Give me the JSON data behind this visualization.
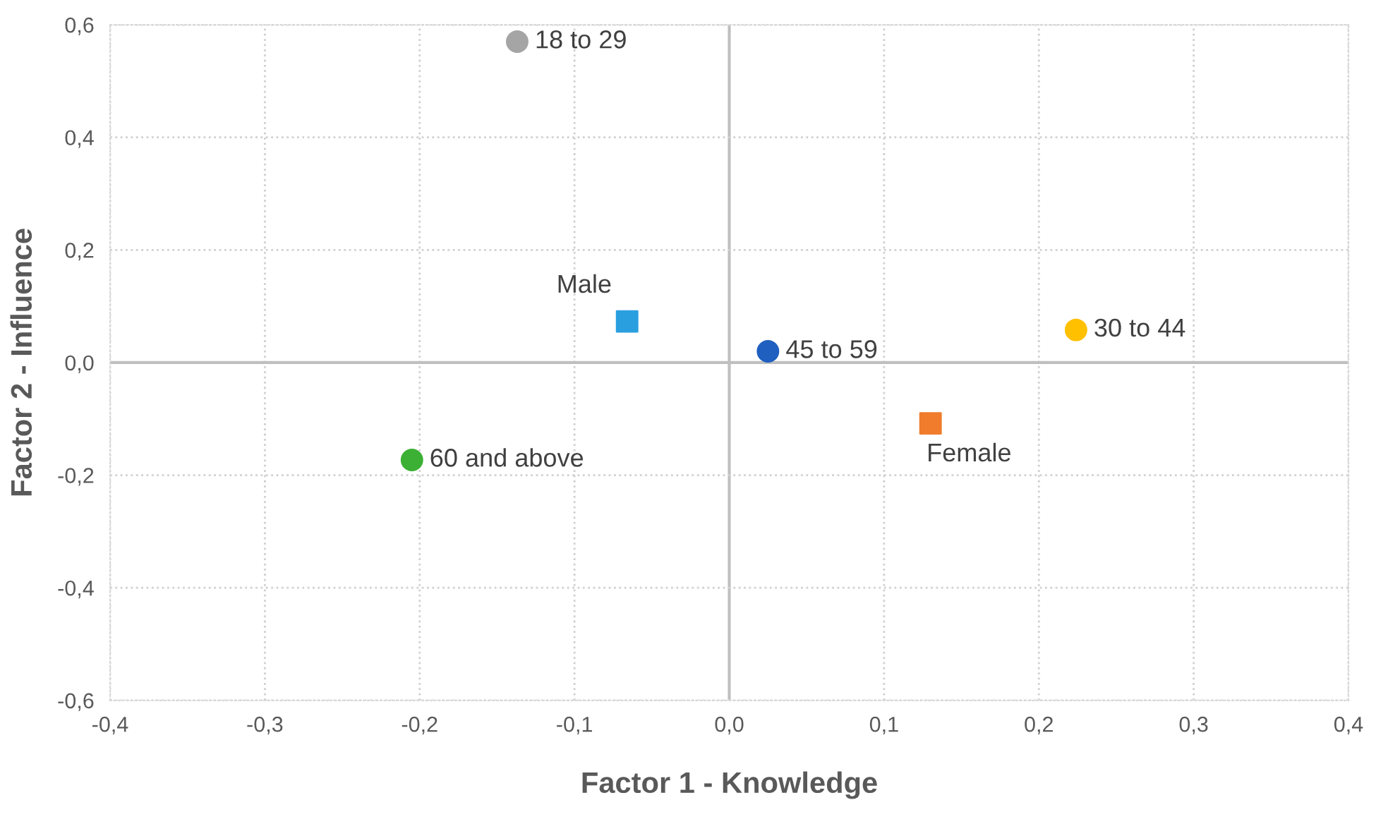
{
  "chart_data": {
    "type": "scatter",
    "xlabel": "Factor 1 - Knowledge",
    "ylabel": "Factor 2 - Influence",
    "series": [
      {
        "name": "18 to 29",
        "color": "#a5a5a5",
        "marker": "circle",
        "x": [
          -0.137
        ],
        "values": [
          0.57
        ]
      },
      {
        "name": "Male",
        "color": "#2a9fe0",
        "marker": "square",
        "x": [
          -0.066
        ],
        "values": [
          0.073
        ]
      },
      {
        "name": "45 to 59",
        "color": "#1f5fc0",
        "marker": "circle",
        "x": [
          0.025
        ],
        "values": [
          0.02
        ]
      },
      {
        "name": "30 to 44",
        "color": "#ffc000",
        "marker": "circle",
        "x": [
          0.224
        ],
        "values": [
          0.058
        ]
      },
      {
        "name": "Female",
        "color": "#f07c2c",
        "marker": "square",
        "x": [
          0.13
        ],
        "values": [
          -0.108
        ]
      },
      {
        "name": "60 and above",
        "color": "#3cb034",
        "marker": "circle",
        "x": [
          -0.205
        ],
        "values": [
          -0.173
        ]
      }
    ],
    "xlim": [
      -0.4,
      0.4
    ],
    "ylim": [
      -0.6,
      0.6
    ],
    "xticks": [
      {
        "value": -0.4,
        "label": "-0,4"
      },
      {
        "value": -0.3,
        "label": "-0,3"
      },
      {
        "value": -0.2,
        "label": "-0,2"
      },
      {
        "value": -0.1,
        "label": "-0,1"
      },
      {
        "value": 0,
        "label": "0,0"
      },
      {
        "value": 0.1,
        "label": "0,1"
      },
      {
        "value": 0.2,
        "label": "0,2"
      },
      {
        "value": 0.3,
        "label": "0,3"
      },
      {
        "value": 0.4,
        "label": "0,4"
      }
    ],
    "yticks": [
      {
        "value": -0.6,
        "label": "-0,6"
      },
      {
        "value": -0.4,
        "label": "-0,4"
      },
      {
        "value": -0.2,
        "label": "-0,2"
      },
      {
        "value": 0,
        "label": "0,0"
      },
      {
        "value": 0.2,
        "label": "0,2"
      },
      {
        "value": 0.4,
        "label": "0,4"
      },
      {
        "value": 0.6,
        "label": "0,6"
      }
    ],
    "grid": true
  }
}
